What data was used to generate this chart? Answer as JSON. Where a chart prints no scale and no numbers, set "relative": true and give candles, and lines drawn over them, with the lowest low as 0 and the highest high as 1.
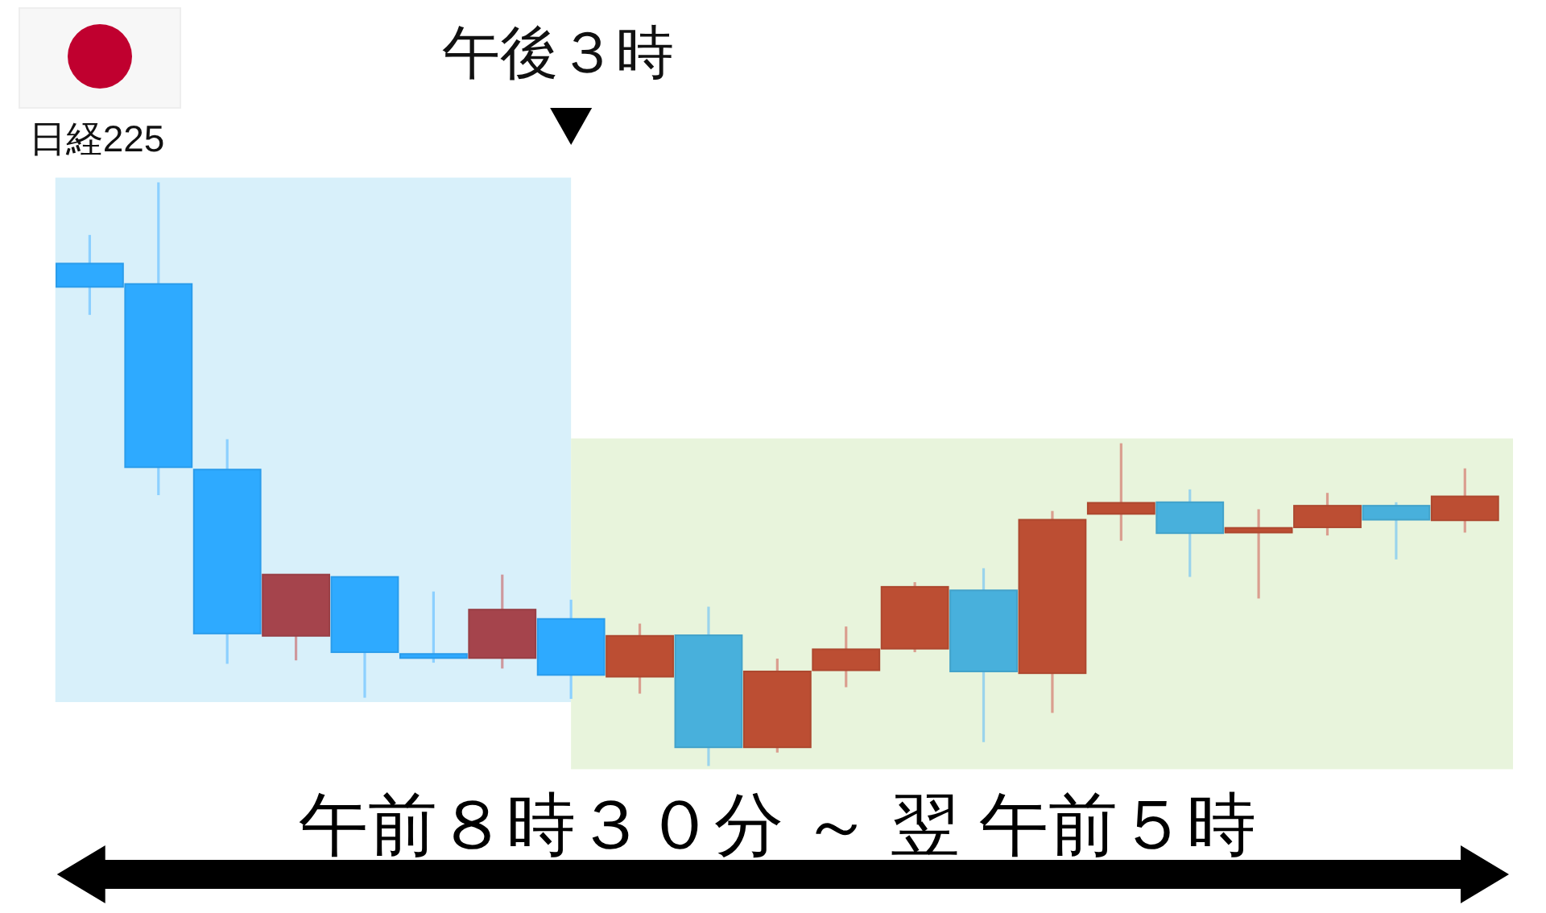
{
  "chart_data": {
    "type": "candlestick",
    "title": "日経225",
    "xlabel": "午前８時３０分 ～ 翌 午前５時",
    "annotations": [
      "午後３時"
    ],
    "relative": true,
    "categories": [
      null,
      null,
      null,
      null,
      null,
      null,
      null,
      null,
      null,
      null,
      null,
      null,
      null,
      null,
      null,
      null,
      null,
      null,
      null,
      null,
      null
    ],
    "ohlc": [
      [
        0.861,
        0.91,
        0.773,
        0.821
      ],
      [
        0.826,
        1.0,
        0.464,
        0.512
      ],
      [
        0.508,
        0.56,
        0.175,
        0.227
      ],
      [
        0.223,
        0.328,
        0.181,
        0.328
      ],
      [
        0.324,
        0.324,
        0.117,
        0.195
      ],
      [
        0.192,
        0.299,
        0.177,
        0.185
      ],
      [
        0.185,
        0.328,
        0.167,
        0.268
      ],
      [
        0.252,
        0.285,
        0.115,
        0.156
      ],
      [
        0.153,
        0.244,
        0.124,
        0.223
      ],
      [
        0.224,
        0.273,
        0.0,
        0.032
      ],
      [
        0.032,
        0.184,
        0.023,
        0.162
      ],
      [
        0.164,
        0.239,
        0.135,
        0.2
      ],
      [
        0.201,
        0.315,
        0.195,
        0.307
      ],
      [
        0.301,
        0.339,
        0.041,
        0.162
      ],
      [
        0.159,
        0.437,
        0.091,
        0.422
      ],
      [
        0.432,
        0.553,
        0.386,
        0.451
      ],
      [
        0.452,
        0.474,
        0.324,
        0.399
      ],
      [
        0.4,
        0.44,
        0.287,
        0.408
      ],
      [
        0.409,
        0.468,
        0.395,
        0.446
      ],
      [
        0.446,
        0.452,
        0.354,
        0.422
      ],
      [
        0.421,
        0.51,
        0.4,
        0.462
      ]
    ],
    "colors": [
      "#2eaaff",
      "#2eaaff",
      "#2eaaff",
      "#a5444c",
      "#2eaaff",
      "#2eaaff",
      "#a5444c",
      "#2eaaff",
      "#bc4e33",
      "#48b0dc",
      "#bc4e33",
      "#bc4e33",
      "#bc4e33",
      "#48b0dc",
      "#bc4e33",
      "#bc4e33",
      "#48b0dc",
      "#bc4e33",
      "#bc4e33",
      "#48b0dc",
      "#bc4e33"
    ]
  }
}
